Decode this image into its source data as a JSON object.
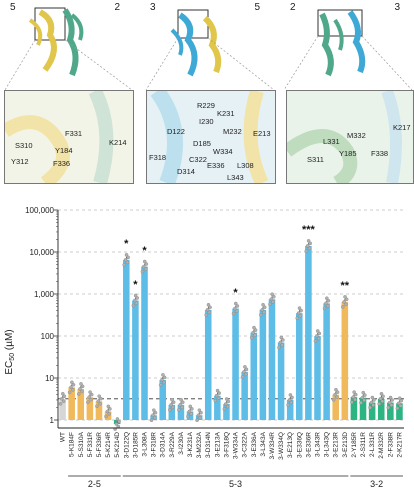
{
  "panels": [
    {
      "left": "5",
      "right": "2",
      "color1": "#e0c64a",
      "color2": "#4fa88a",
      "labels": [
        "F331",
        "S310",
        "Y184",
        "Y312",
        "F336",
        "K214"
      ]
    },
    {
      "left": "3",
      "right": "5",
      "color1": "#3fa9d6",
      "color2": "#e0c64a",
      "labels": [
        "R229",
        "K231",
        "I230",
        "D122",
        "M232",
        "D185",
        "E213",
        "W334",
        "F318",
        "C322",
        "E336",
        "L308",
        "D314",
        "L343"
      ]
    },
    {
      "left": "2",
      "right": "3",
      "color1": "#4fa88a",
      "color2": "#3fa9d6",
      "labels": [
        "K217",
        "L331",
        "M332",
        "S311",
        "Y185",
        "F338"
      ]
    }
  ],
  "chart_data": {
    "type": "bar",
    "ylabel": "EC50 (µM)",
    "yscale": "log",
    "ylim": [
      1,
      100000
    ],
    "yticks": [
      "1",
      "10",
      "100",
      "1,000",
      "10,000",
      "100,000"
    ],
    "threshold": 3.2,
    "categories": [
      "WT",
      "5-K184F",
      "5-S310A",
      "5-F331R",
      "5-F336R",
      "5-K214R",
      "5-K214D",
      "3-D122Q",
      "3-D185R",
      "3-L308A",
      "3-F318R",
      "3-D314A",
      "3-R229A",
      "3-I230A",
      "3-K231A",
      "3-M232A",
      "3-D314N",
      "3-E213A",
      "3-F318Q",
      "3-W334A",
      "3-C322A",
      "3-E336A",
      "3-L343A",
      "3-W334R",
      "3-W334Q",
      "3-E213Q",
      "3-E336Q",
      "3-E336R",
      "3-L343R",
      "3-L343Q",
      "3-E213R",
      "3-E213D",
      "2-Y185R",
      "2-S311R",
      "2-L331R",
      "2-M332R",
      "2-F338R",
      "2-K217R"
    ],
    "values": [
      3.2,
      6,
      5.5,
      3.5,
      2.8,
      1.6,
      0.8,
      6500,
      700,
      4500,
      1.3,
      9,
      2.3,
      2.3,
      1.6,
      1.3,
      420,
      3.8,
      2.4,
      450,
      14,
      120,
      420,
      750,
      70,
      3,
      350,
      14000,
      100,
      600,
      4,
      650,
      3.5,
      3.4,
      2.6,
      3.2,
      2.6,
      2.5
    ],
    "groups": [
      {
        "name": "2-5",
        "from": 1,
        "to": 6,
        "color": "#f0b95c"
      },
      {
        "name": "5-3",
        "from": 7,
        "to": 31,
        "color": "#5dbde6"
      },
      {
        "name": "3-2",
        "from": 32,
        "to": 37,
        "color": "#2db483"
      }
    ],
    "wt_color": "#d6d6d6",
    "special_colors": {
      "6": "#2db483",
      "30": "#f0b95c",
      "31": "#f0b95c"
    },
    "significance": [
      {
        "index": 7,
        "label": "*"
      },
      {
        "index": 8,
        "label": "*"
      },
      {
        "index": 9,
        "label": "*"
      },
      {
        "index": 19,
        "label": "*"
      },
      {
        "index": 27,
        "label": "***"
      },
      {
        "index": 31,
        "label": "**"
      }
    ]
  }
}
